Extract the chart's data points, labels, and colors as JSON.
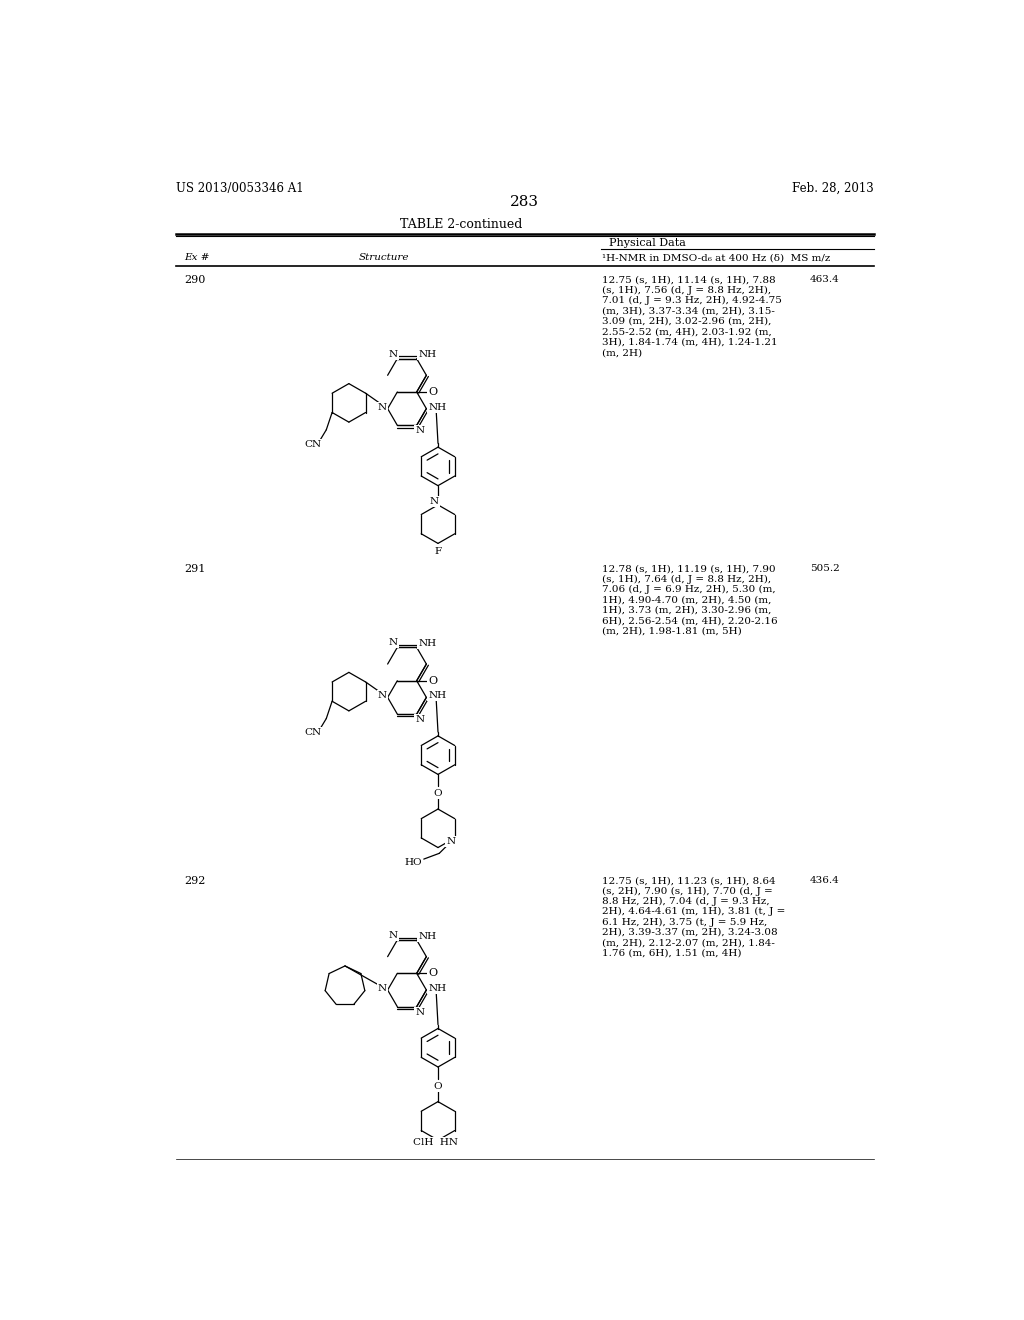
{
  "header_left": "US 2013/0053346 A1",
  "header_right": "Feb. 28, 2013",
  "page_number": "283",
  "table_title": "TABLE 2-continued",
  "col_header_phys": "Physical Data",
  "col_header_nmr": "¹H-NMR in DMSO-d₆ at 400 Hz (δ)  MS m/z",
  "entries": [
    {
      "ex": "290",
      "ms": "463.4",
      "nmr_lines": [
        "12.75 (s, 1H), 11.14 (s, 1H), 7.88",
        "(s, 1H), 7.56 (d, J = 8.8 Hz, 2H),",
        "7.01 (d, J = 9.3 Hz, 2H), 4.92-4.75",
        "(m, 3H), 3.37-3.34 (m, 2H), 3.15-",
        "3.09 (m, 2H), 3.02-2.96 (m, 2H),",
        "2.55-2.52 (m, 4H), 2.03-1.92 (m,",
        "3H), 1.84-1.74 (m, 4H), 1.24-1.21",
        "(m, 2H)"
      ]
    },
    {
      "ex": "291",
      "ms": "505.2",
      "nmr_lines": [
        "12.78 (s, 1H), 11.19 (s, 1H), 7.90",
        "(s, 1H), 7.64 (d, J = 8.8 Hz, 2H),",
        "7.06 (d, J = 6.9 Hz, 2H), 5.30 (m,",
        "1H), 4.90-4.70 (m, 2H), 4.50 (m,",
        "1H), 3.73 (m, 2H), 3.30-2.96 (m,",
        "6H), 2.56-2.54 (m, 4H), 2.20-2.16",
        "(m, 2H), 1.98-1.81 (m, 5H)"
      ]
    },
    {
      "ex": "292",
      "ms": "436.4",
      "nmr_lines": [
        "12.75 (s, 1H), 11.23 (s, 1H), 8.64",
        "(s, 2H), 7.90 (s, 1H), 7.70 (d, J =",
        "8.8 Hz, 2H), 7.04 (d, J = 9.3 Hz,",
        "2H), 4.64-4.61 (m, 1H), 3.81 (t, J =",
        "6.1 Hz, 2H), 3.75 (t, J = 5.9 Hz,",
        "2H), 3.39-3.37 (m, 2H), 3.24-3.08",
        "(m, 2H), 2.12-2.07 (m, 2H), 1.84-",
        "1.76 (m, 6H), 1.51 (m, 4H)"
      ]
    }
  ]
}
